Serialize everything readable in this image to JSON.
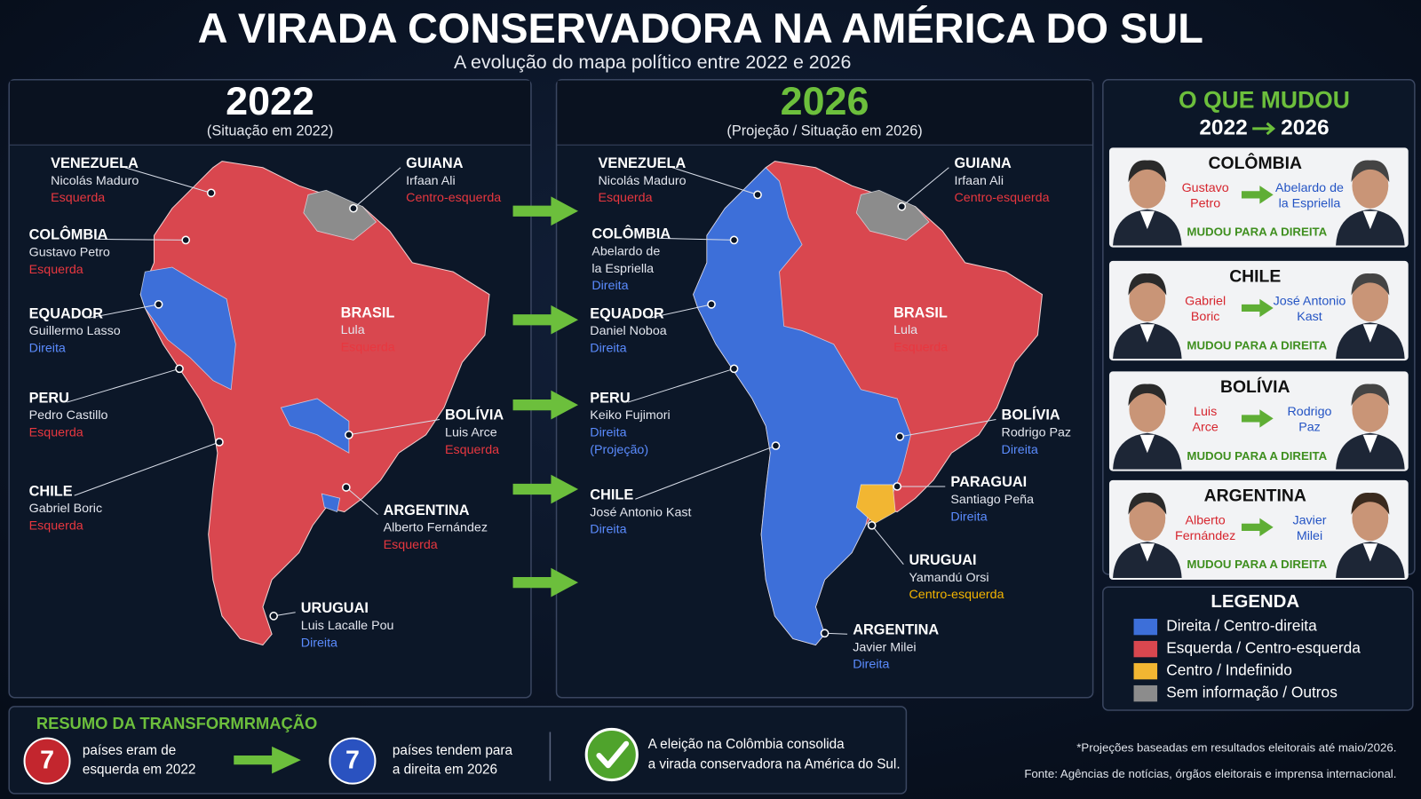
{
  "header": {
    "title": "A VIRADA CONSERVADORA NA AMÉRICA DO SUL",
    "subtitle": "A evolução do mapa político entre 2022 e 2026"
  },
  "maps": [
    {
      "year": "2022",
      "caption": "(Situação em 2022)",
      "labels": [
        {
          "country": "VENEZUELA",
          "leader": [
            "Nicolás Maduro"
          ],
          "orientation": [
            "Esquerda"
          ],
          "color": "#e8373f"
        },
        {
          "country": "COLÔMBIA",
          "leader": [
            "Gustavo Petro"
          ],
          "orientation": [
            "Esquerda"
          ],
          "color": "#e8373f"
        },
        {
          "country": "EQUADOR",
          "leader": [
            "Guillermo Lasso"
          ],
          "orientation": [
            "Direita"
          ],
          "color": "#5b8cff"
        },
        {
          "country": "PERU",
          "leader": [
            "Pedro Castillo"
          ],
          "orientation": [
            "Esquerda"
          ],
          "color": "#e8373f"
        },
        {
          "country": "CHILE",
          "leader": [
            "Gabriel Boric"
          ],
          "orientation": [
            "Esquerda"
          ],
          "color": "#e8373f"
        },
        {
          "country": "GUIANA",
          "leader": [
            "Irfaan Ali"
          ],
          "orientation": [
            "Centro-esquerda"
          ],
          "color": "#e8373f"
        },
        {
          "country": "BRASIL",
          "leader": [
            "Lula"
          ],
          "orientation": [
            "Esquerda"
          ],
          "color": "#e8373f"
        },
        {
          "country": "BOLÍVIA",
          "leader": [
            "Luis Arce"
          ],
          "orientation": [
            "Esquerda"
          ],
          "color": "#e8373f"
        },
        {
          "country": "ARGENTINA",
          "leader": [
            "Alberto Fernández"
          ],
          "orientation": [
            "Esquerda"
          ],
          "color": "#e8373f"
        },
        {
          "country": "URUGUAI",
          "leader": [
            "Luis Lacalle Pou"
          ],
          "orientation": [
            "Direita"
          ],
          "color": "#5b8cff"
        }
      ]
    },
    {
      "year": "2026",
      "caption": "(Projeção / Situação em 2026)",
      "labels": [
        {
          "country": "VENEZUELA",
          "leader": [
            "Nicolás Maduro"
          ],
          "orientation": [
            "Esquerda"
          ],
          "color": "#e8373f"
        },
        {
          "country": "COLÔMBIA",
          "leader": [
            "Abelardo de",
            "la Espriella"
          ],
          "orientation": [
            "Direita"
          ],
          "color": "#5b8cff"
        },
        {
          "country": "EQUADOR",
          "leader": [
            "Daniel Noboa"
          ],
          "orientation": [
            "Direita"
          ],
          "color": "#5b8cff"
        },
        {
          "country": "PERU",
          "leader": [
            "Keiko Fujimori"
          ],
          "orientation": [
            "Direita",
            "(Projeção)"
          ],
          "color": "#5b8cff"
        },
        {
          "country": "CHILE",
          "leader": [
            "José Antonio Kast"
          ],
          "orientation": [
            "Direita"
          ],
          "color": "#5b8cff"
        },
        {
          "country": "GUIANA",
          "leader": [
            "Irfaan Ali"
          ],
          "orientation": [
            "Centro-esquerda"
          ],
          "color": "#e8373f"
        },
        {
          "country": "BRASIL",
          "leader": [
            "Lula"
          ],
          "orientation": [
            "Esquerda"
          ],
          "color": "#e8373f"
        },
        {
          "country": "BOLÍVIA",
          "leader": [
            "Rodrigo Paz"
          ],
          "orientation": [
            "Direita"
          ],
          "color": "#5b8cff"
        },
        {
          "country": "PARAGUAI",
          "leader": [
            "Santiago Peña"
          ],
          "orientation": [
            "Direita"
          ],
          "color": "#5b8cff"
        },
        {
          "country": "URUGUAI",
          "leader": [
            "Yamandú Orsi"
          ],
          "orientation": [
            "Centro-esquerda"
          ],
          "color": "#f4b400"
        },
        {
          "country": "ARGENTINA",
          "leader": [
            "Javier Milei"
          ],
          "orientation": [
            "Direita"
          ],
          "color": "#5b8cff"
        }
      ]
    }
  ],
  "changes": {
    "title": "O QUE MUDOU",
    "from": "2022",
    "to": "2026",
    "items": [
      {
        "country": "COLÔMBIA",
        "before": [
          "Gustavo",
          "Petro"
        ],
        "after": [
          "Abelardo de",
          "la Espriella"
        ],
        "status": "MUDOU PARA A DIREITA"
      },
      {
        "country": "CHILE",
        "before": [
          "Gabriel",
          "Boric"
        ],
        "after": [
          "José Antonio",
          "Kast"
        ],
        "status": "MUDOU PARA A DIREITA"
      },
      {
        "country": "BOLÍVIA",
        "before": [
          "Luis",
          "Arce"
        ],
        "after": [
          "Rodrigo",
          "Paz"
        ],
        "status": "MUDOU PARA A DIREITA"
      },
      {
        "country": "ARGENTINA",
        "before": [
          "Alberto",
          "Fernández"
        ],
        "after": [
          "Javier",
          "Milei"
        ],
        "status": "MUDOU PARA A DIREITA"
      }
    ]
  },
  "legend": {
    "title": "LEGENDA",
    "items": [
      {
        "label": "Direita / Centro-direita",
        "color": "#3d6fd9"
      },
      {
        "label": "Esquerda / Centro-esquerda",
        "color": "#d9474f"
      },
      {
        "label": "Centro / Indefinido",
        "color": "#f2b632"
      },
      {
        "label": "Sem informação / Outros",
        "color": "#8c8c8c"
      }
    ]
  },
  "summary": {
    "title": "RESUMO DA TRANSFORMRMAÇÃO",
    "left": {
      "count": 7,
      "text": [
        "países eram de",
        "esquerda em 2022"
      ]
    },
    "right": {
      "count": 7,
      "text": [
        "países tendem para",
        "a direita em 2026"
      ]
    },
    "conclusion": [
      "A eleição na Colômbia consolida",
      "a virada conservadora na América do Sul."
    ]
  },
  "notes": [
    "*Projeções baseadas em resultados eleitorais até maio/2026.",
    "Fonte: Agências de notícias, órgãos eleitorais e imprensa internacional."
  ]
}
